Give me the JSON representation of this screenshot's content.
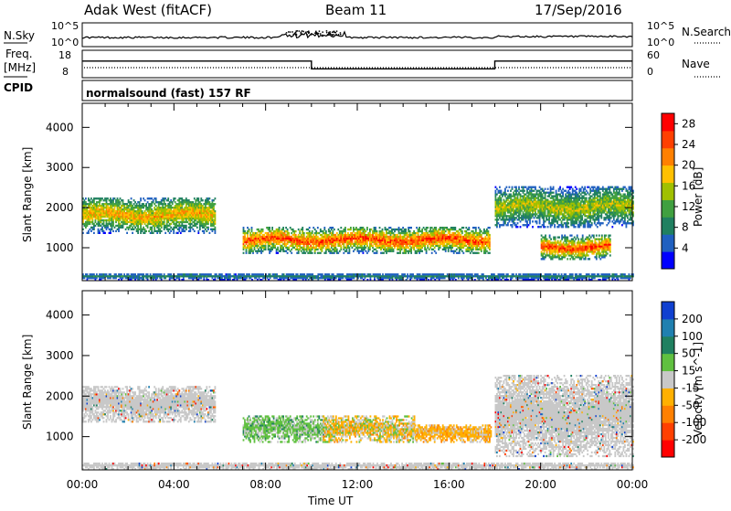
{
  "header": {
    "title": "Adak West (fitACF)",
    "beam": "Beam 11",
    "date": "17/Sep/2016"
  },
  "noise_panel": {
    "left_label": "N.Sky",
    "right_label": "N.Search",
    "left_ticks": [
      "10^5",
      "10^0"
    ],
    "right_ticks": [
      "10^5",
      "10^0"
    ]
  },
  "freq_panel": {
    "left_label_line1": "Freq.",
    "left_label_line2": "[MHz]",
    "right_label": "Nave",
    "left_ticks": [
      "18",
      "8"
    ],
    "right_ticks": [
      "60",
      "0"
    ],
    "freq_steps": [
      {
        "start_hour": 0,
        "end_hour": 10,
        "mhz": 14.5
      },
      {
        "start_hour": 10,
        "end_hour": 18,
        "mhz": 10.5
      },
      {
        "start_hour": 18,
        "end_hour": 24,
        "mhz": 14.5
      }
    ]
  },
  "cpid": {
    "label": "CPID",
    "text": "normalsound (fast) 157 RF"
  },
  "chart_data": [
    {
      "type": "heatmap",
      "name": "power",
      "xlabel": "",
      "ylabel": "Slant Range [km]",
      "xlim_hours": [
        0,
        24
      ],
      "ylim": [
        180,
        4600
      ],
      "y_ticks": [
        "1000",
        "2000",
        "3000",
        "4000"
      ],
      "colorbar": {
        "label": "Power [dB]",
        "ticks": [
          "4",
          "8",
          "12",
          "16",
          "20",
          "24",
          "28"
        ],
        "range": [
          0,
          30
        ],
        "colors": [
          "#0000ff",
          "#2060c0",
          "#208060",
          "#40a040",
          "#a0c000",
          "#ffc000",
          "#ff8000",
          "#ff4000",
          "#ff0000"
        ]
      },
      "echo_regions": [
        {
          "start_hour": 0.0,
          "end_hour": 5.8,
          "range_low_km": 1350,
          "range_high_km": 2250,
          "peak_db": 22
        },
        {
          "start_hour": 7.0,
          "end_hour": 17.8,
          "range_low_km": 850,
          "range_high_km": 1500,
          "peak_db": 28
        },
        {
          "start_hour": 18.0,
          "end_hour": 24.0,
          "range_low_km": 1500,
          "range_high_km": 2500,
          "peak_db": 18
        },
        {
          "start_hour": 20.0,
          "end_hour": 23.0,
          "range_low_km": 700,
          "range_high_km": 1300,
          "peak_db": 28
        },
        {
          "start_hour": 0.0,
          "end_hour": 24.0,
          "range_low_km": 180,
          "range_high_km": 350,
          "peak_db": 10
        }
      ]
    },
    {
      "type": "heatmap",
      "name": "velocity",
      "xlabel": "Time UT",
      "ylabel": "Slant Range [km]",
      "xlim_hours": [
        0,
        24
      ],
      "ylim": [
        180,
        4600
      ],
      "y_ticks": [
        "1000",
        "2000",
        "3000",
        "4000"
      ],
      "x_ticks": [
        "00:00",
        "04:00",
        "08:00",
        "12:00",
        "16:00",
        "20:00",
        "00:00"
      ],
      "colorbar": {
        "label": "Velocity [m s^-1]",
        "ticks": [
          "200",
          "100",
          "50",
          "15",
          "-15",
          "-50",
          "-100",
          "-200"
        ],
        "colors": [
          "#1040d0",
          "#2080b0",
          "#208060",
          "#60c040",
          "#c8c8c8",
          "#ffb000",
          "#ff8000",
          "#ff4000",
          "#ff0000"
        ]
      },
      "echo_regions": [
        {
          "start_hour": 0.0,
          "end_hour": 5.8,
          "range_low_km": 1350,
          "range_high_km": 2250,
          "velocity_class": "ground"
        },
        {
          "start_hour": 7.0,
          "end_hour": 10.5,
          "range_low_km": 850,
          "range_high_km": 1500,
          "velocity_class": "positive"
        },
        {
          "start_hour": 10.5,
          "end_hour": 14.5,
          "range_low_km": 850,
          "range_high_km": 1500,
          "velocity_class": "mixed"
        },
        {
          "start_hour": 14.5,
          "end_hour": 17.8,
          "range_low_km": 850,
          "range_high_km": 1300,
          "velocity_class": "negative"
        },
        {
          "start_hour": 18.0,
          "end_hour": 24.0,
          "range_low_km": 500,
          "range_high_km": 2500,
          "velocity_class": "ground"
        },
        {
          "start_hour": 0.0,
          "end_hour": 24.0,
          "range_low_km": 180,
          "range_high_km": 350,
          "velocity_class": "ground"
        }
      ]
    }
  ]
}
